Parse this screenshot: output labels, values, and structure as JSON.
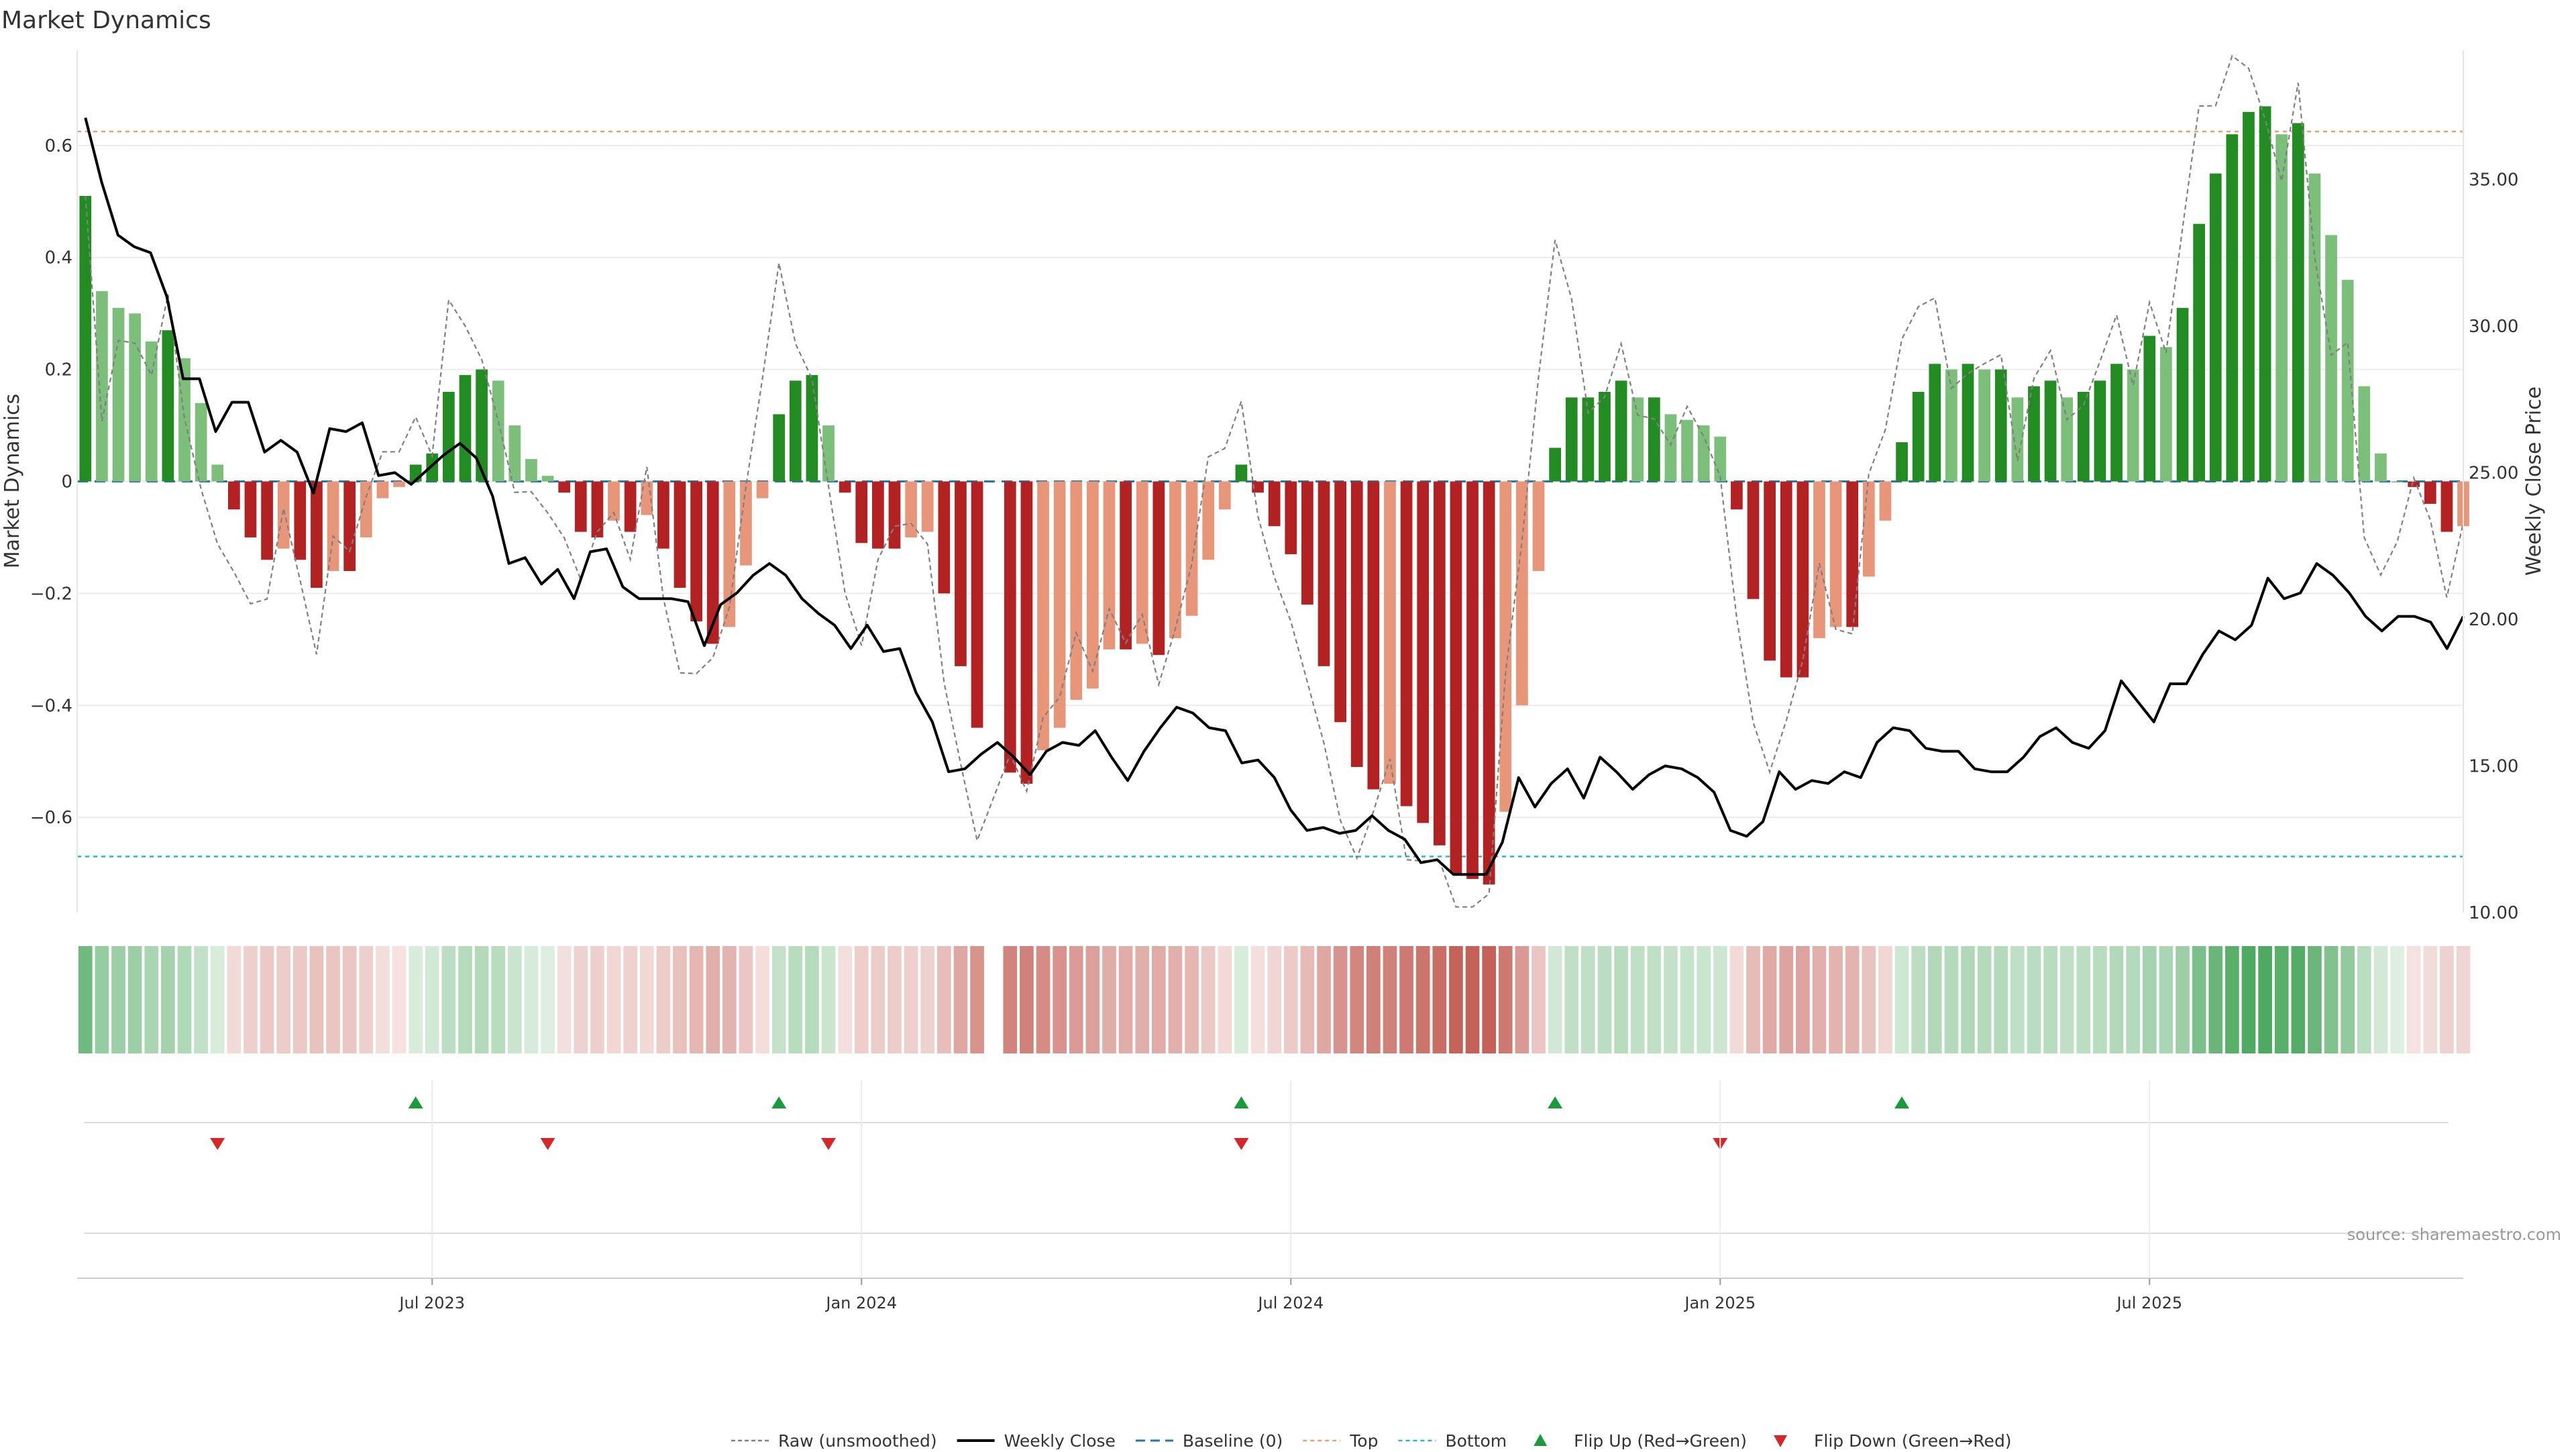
{
  "title": "Market Dynamics",
  "source": "source: sharemaestro.com",
  "colors": {
    "strong_green": "#228b22",
    "light_green": "#7bbf7b",
    "strong_red": "#b22222",
    "light_red": "#e8967a",
    "price_line": "#000000",
    "raw_line": "#808080",
    "baseline": "#1f77b4",
    "top": "#e3a173",
    "bottom": "#17becf",
    "flip_up": "#1a9a3a",
    "flip_down": "#d62728"
  },
  "chart_data": {
    "type": "bar",
    "ylabel_left": "Market Dynamics",
    "ylabel_right": "Weekly Close Price",
    "ylim_left": [
      -0.77,
      0.77
    ],
    "ylim_right": [
      10.0,
      39.4
    ],
    "yticks_left": [
      {
        "value": 0.6,
        "label": "0.6"
      },
      {
        "value": 0.4,
        "label": "0.4"
      },
      {
        "value": 0.2,
        "label": "0.2"
      },
      {
        "value": 0,
        "label": "0"
      },
      {
        "value": -0.2,
        "label": "−0.2"
      },
      {
        "value": -0.4,
        "label": "−0.4"
      },
      {
        "value": -0.6,
        "label": "−0.6"
      }
    ],
    "yticks_right": [
      {
        "value": 35,
        "label": "35.00"
      },
      {
        "value": 30,
        "label": "30.00"
      },
      {
        "value": 25,
        "label": "25.00"
      },
      {
        "value": 20,
        "label": "20.00"
      },
      {
        "value": 15,
        "label": "15.00"
      },
      {
        "value": 10,
        "label": "10.00"
      }
    ],
    "top_level": 0.625,
    "bottom_level": -0.67,
    "x_ticks": [
      {
        "index": 21,
        "label": "Jul 2023"
      },
      {
        "index": 47,
        "label": "Jan 2024"
      },
      {
        "index": 73,
        "label": "Jul 2024"
      },
      {
        "index": 99,
        "label": "Jan 2025"
      },
      {
        "index": 125,
        "label": "Jul 2025"
      }
    ],
    "bar_values": [
      0.51,
      0.34,
      0.31,
      0.3,
      0.25,
      0.27,
      0.22,
      0.14,
      0.03,
      -0.05,
      -0.1,
      -0.14,
      -0.12,
      -0.14,
      -0.19,
      -0.16,
      -0.16,
      -0.1,
      -0.03,
      -0.01,
      0.03,
      0.05,
      0.16,
      0.19,
      0.2,
      0.18,
      0.1,
      0.04,
      0.01,
      -0.02,
      -0.09,
      -0.1,
      -0.07,
      -0.09,
      -0.06,
      -0.12,
      -0.19,
      -0.25,
      -0.29,
      -0.26,
      -0.15,
      -0.03,
      0.12,
      0.18,
      0.19,
      0.1,
      -0.02,
      -0.11,
      -0.12,
      -0.12,
      -0.1,
      -0.09,
      -0.2,
      -0.33,
      -0.44,
      null,
      -0.52,
      -0.54,
      -0.48,
      -0.44,
      -0.39,
      -0.37,
      -0.3,
      -0.3,
      -0.29,
      -0.31,
      -0.28,
      -0.24,
      -0.14,
      -0.05,
      0.03,
      -0.02,
      -0.08,
      -0.13,
      -0.22,
      -0.33,
      -0.43,
      -0.51,
      -0.55,
      -0.54,
      -0.58,
      -0.61,
      -0.65,
      -0.7,
      -0.71,
      -0.72,
      -0.59,
      -0.4,
      -0.16,
      0.06,
      0.15,
      0.15,
      0.16,
      0.18,
      0.15,
      0.15,
      0.12,
      0.11,
      0.1,
      0.08,
      -0.05,
      -0.21,
      -0.32,
      -0.35,
      -0.35,
      -0.28,
      -0.26,
      -0.26,
      -0.17,
      -0.07,
      0.07,
      0.16,
      0.21,
      0.2,
      0.21,
      0.2,
      0.2,
      0.15,
      0.17,
      0.18,
      0.15,
      0.16,
      0.18,
      0.21,
      0.2,
      0.26,
      0.24,
      0.31,
      0.46,
      0.55,
      0.62,
      0.66,
      0.67,
      0.62,
      0.64,
      0.55,
      0.44,
      0.36,
      0.17,
      0.05,
      0.0,
      -0.01,
      -0.04,
      -0.09,
      -0.08
    ],
    "price": [
      37.1,
      34.9,
      33.1,
      32.7,
      32.5,
      31.0,
      28.2,
      28.2,
      26.4,
      27.4,
      27.4,
      25.7,
      26.1,
      25.7,
      24.3,
      26.5,
      26.4,
      26.7,
      24.9,
      25.0,
      24.6,
      25.1,
      25.6,
      26.0,
      25.5,
      24.2,
      21.9,
      22.1,
      21.2,
      21.7,
      20.7,
      22.3,
      22.4,
      21.1,
      20.7,
      20.7,
      20.7,
      20.6,
      19.1,
      20.5,
      20.9,
      21.5,
      21.9,
      21.5,
      20.7,
      20.2,
      19.8,
      19.0,
      19.8,
      18.9,
      19.0,
      17.5,
      16.5,
      14.8,
      14.9,
      15.4,
      15.8,
      15.3,
      14.7,
      15.5,
      15.8,
      15.7,
      16.2,
      15.3,
      14.5,
      15.5,
      16.3,
      17.0,
      16.8,
      16.3,
      16.2,
      15.1,
      15.2,
      14.6,
      13.5,
      12.8,
      12.9,
      12.7,
      12.8,
      13.3,
      12.8,
      12.5,
      11.7,
      11.8,
      11.3,
      11.3,
      11.3,
      12.4,
      14.6,
      13.6,
      14.4,
      14.9,
      13.9,
      15.3,
      14.8,
      14.2,
      14.7,
      15.0,
      14.9,
      14.6,
      14.1,
      12.8,
      12.6,
      13.1,
      14.8,
      14.2,
      14.5,
      14.4,
      14.8,
      14.6,
      15.8,
      16.3,
      16.2,
      15.6,
      15.5,
      15.5,
      14.9,
      14.8,
      14.8,
      15.3,
      16.0,
      16.3,
      15.8,
      15.6,
      16.2,
      17.9,
      17.2,
      16.5,
      17.8,
      17.8,
      18.8,
      19.6,
      19.3,
      19.8,
      21.4,
      20.7,
      20.9,
      21.9,
      21.5,
      20.9,
      20.1,
      19.6,
      20.1,
      20.1,
      19.9,
      19.0,
      20.1
    ]
  },
  "legend": [
    {
      "key": "raw",
      "label": "Raw (unsmoothed)"
    },
    {
      "key": "price",
      "label": "Weekly Close"
    },
    {
      "key": "baseline",
      "label": "Baseline (0)"
    },
    {
      "key": "top",
      "label": "Top"
    },
    {
      "key": "bottom",
      "label": "Bottom"
    },
    {
      "key": "flip_up",
      "label": "Flip Up (Red→Green)"
    },
    {
      "key": "flip_down",
      "label": "Flip Down (Green→Red)"
    }
  ]
}
